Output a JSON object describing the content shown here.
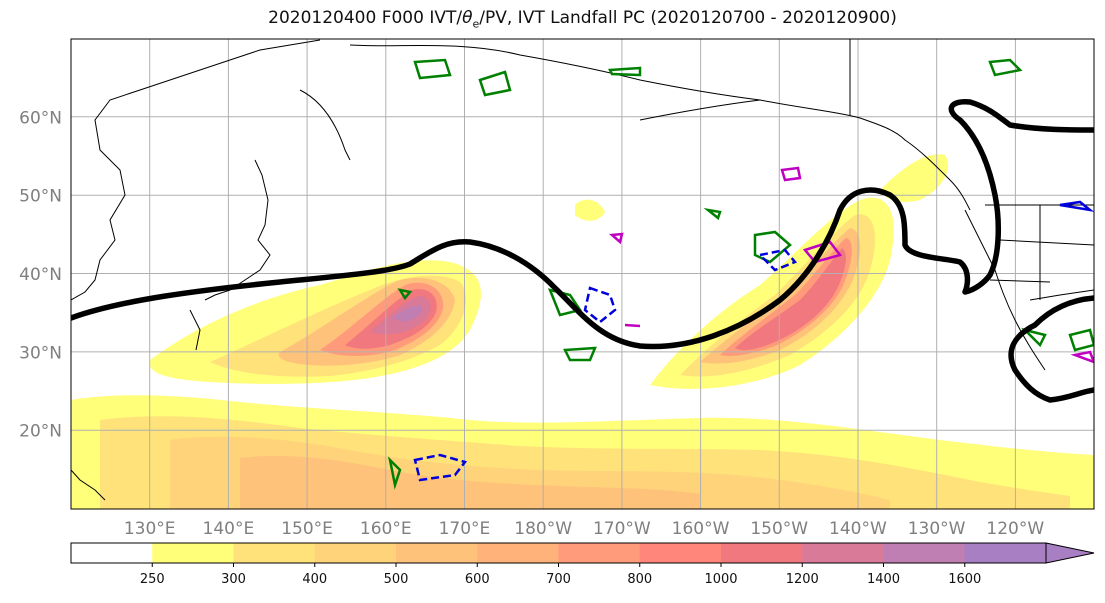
{
  "title_run": "2020120400 F000 IVT/",
  "title_theta": "θ",
  "title_sub": "e",
  "title_tail": "/PV, IVT Landfall PC (2020120700 - 2020120900)",
  "lat_labels": [
    "60°N",
    "50°N",
    "40°N",
    "30°N",
    "20°N"
  ],
  "lat_values": [
    60,
    50,
    40,
    30,
    20
  ],
  "lon_labels": [
    "130°E",
    "140°E",
    "150°E",
    "160°E",
    "170°E",
    "180°W",
    "170°W",
    "160°W",
    "150°W",
    "140°W",
    "130°W",
    "120°W"
  ],
  "lon_values": [
    130,
    140,
    150,
    160,
    170,
    180,
    190,
    200,
    210,
    220,
    230,
    240
  ],
  "colorbar": {
    "ticks": [
      "250",
      "300",
      "400",
      "500",
      "600",
      "700",
      "800",
      "1000",
      "1200",
      "1400",
      "1600"
    ],
    "colors": [
      "#ffffff",
      "#ffff7a",
      "#ffe27a",
      "#ffd37a",
      "#ffc27a",
      "#ffb27a",
      "#ff9a7a",
      "#ff867a",
      "#f0787e",
      "#d97a98",
      "#c07fb2",
      "#a97fc4"
    ]
  },
  "map_extent": {
    "lon_min": 120,
    "lon_max": 250,
    "lat_min": 10,
    "lat_max": 70
  }
}
